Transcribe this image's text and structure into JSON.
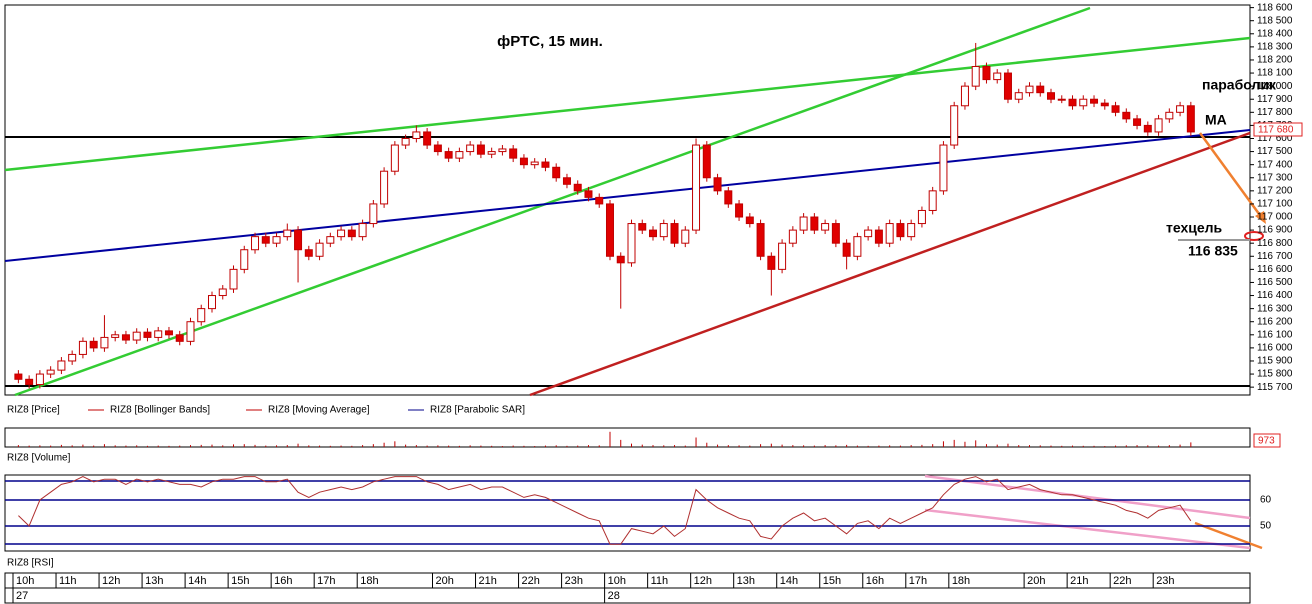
{
  "chart_data": [
    {
      "type": "candlestick",
      "title": "фРТС, 15 мин.",
      "ohlc": [
        [
          115800,
          115830,
          115730,
          115760
        ],
        [
          115760,
          115790,
          115690,
          115720
        ],
        [
          115720,
          115830,
          115690,
          115800
        ],
        [
          115800,
          115860,
          115770,
          115830
        ],
        [
          115830,
          115930,
          115800,
          115900
        ],
        [
          115900,
          115980,
          115870,
          115950
        ],
        [
          115950,
          116080,
          115920,
          116050
        ],
        [
          116050,
          116080,
          115970,
          116000
        ],
        [
          116000,
          116250,
          115970,
          116080
        ],
        [
          116080,
          116130,
          116050,
          116100
        ],
        [
          116100,
          116130,
          116030,
          116060
        ],
        [
          116060,
          116150,
          116030,
          116120
        ],
        [
          116120,
          116150,
          116050,
          116080
        ],
        [
          116080,
          116160,
          116050,
          116130
        ],
        [
          116130,
          116160,
          116070,
          116100
        ],
        [
          116100,
          116130,
          116020,
          116050
        ],
        [
          116050,
          116230,
          116020,
          116200
        ],
        [
          116200,
          116330,
          116170,
          116300
        ],
        [
          116300,
          116430,
          116270,
          116400
        ],
        [
          116400,
          116480,
          116370,
          116450
        ],
        [
          116450,
          116630,
          116420,
          116600
        ],
        [
          116600,
          116780,
          116570,
          116750
        ],
        [
          116750,
          116880,
          116720,
          116850
        ],
        [
          116850,
          116880,
          116770,
          116800
        ],
        [
          116800,
          116880,
          116770,
          116850
        ],
        [
          116850,
          116950,
          116820,
          116900
        ],
        [
          116900,
          116930,
          116500,
          116750
        ],
        [
          116750,
          116780,
          116670,
          116700
        ],
        [
          116700,
          116830,
          116670,
          116800
        ],
        [
          116800,
          116880,
          116770,
          116850
        ],
        [
          116850,
          116930,
          116820,
          116900
        ],
        [
          116900,
          116930,
          116820,
          116850
        ],
        [
          116850,
          116980,
          116820,
          116950
        ],
        [
          116950,
          117130,
          116920,
          117100
        ],
        [
          117100,
          117380,
          117070,
          117350
        ],
        [
          117350,
          117580,
          117320,
          117550
        ],
        [
          117550,
          117630,
          117520,
          117600
        ],
        [
          117600,
          117700,
          117570,
          117650
        ],
        [
          117650,
          117680,
          117520,
          117550
        ],
        [
          117550,
          117580,
          117470,
          117500
        ],
        [
          117500,
          117530,
          117420,
          117450
        ],
        [
          117450,
          117530,
          117420,
          117500
        ],
        [
          117500,
          117580,
          117470,
          117550
        ],
        [
          117550,
          117580,
          117450,
          117480
        ],
        [
          117480,
          117530,
          117450,
          117500
        ],
        [
          117500,
          117550,
          117470,
          117520
        ],
        [
          117520,
          117550,
          117420,
          117450
        ],
        [
          117450,
          117480,
          117370,
          117400
        ],
        [
          117400,
          117450,
          117370,
          117420
        ],
        [
          117420,
          117450,
          117350,
          117380
        ],
        [
          117380,
          117410,
          117270,
          117300
        ],
        [
          117300,
          117330,
          117220,
          117250
        ],
        [
          117250,
          117280,
          117170,
          117200
        ],
        [
          117200,
          117230,
          117120,
          117150
        ],
        [
          117150,
          117180,
          117070,
          117100
        ],
        [
          117100,
          117130,
          116670,
          116700
        ],
        [
          116700,
          116730,
          116300,
          116650
        ],
        [
          116650,
          116980,
          116620,
          116950
        ],
        [
          116950,
          116980,
          116870,
          116900
        ],
        [
          116900,
          116930,
          116820,
          116850
        ],
        [
          116850,
          116980,
          116820,
          116950
        ],
        [
          116950,
          116980,
          116770,
          116800
        ],
        [
          116800,
          116930,
          116770,
          116900
        ],
        [
          116900,
          117600,
          116870,
          117550
        ],
        [
          117550,
          117580,
          117270,
          117300
        ],
        [
          117300,
          117330,
          117170,
          117200
        ],
        [
          117200,
          117230,
          117070,
          117100
        ],
        [
          117100,
          117130,
          116970,
          117000
        ],
        [
          117000,
          117030,
          116920,
          116950
        ],
        [
          116950,
          116980,
          116670,
          116700
        ],
        [
          116700,
          116730,
          116400,
          116600
        ],
        [
          116600,
          116830,
          116570,
          116800
        ],
        [
          116800,
          116930,
          116770,
          116900
        ],
        [
          116900,
          117030,
          116870,
          117000
        ],
        [
          117000,
          117030,
          116870,
          116900
        ],
        [
          116900,
          116980,
          116870,
          116950
        ],
        [
          116950,
          116980,
          116770,
          116800
        ],
        [
          116800,
          116830,
          116600,
          116700
        ],
        [
          116700,
          116880,
          116670,
          116850
        ],
        [
          116850,
          116930,
          116820,
          116900
        ],
        [
          116900,
          116930,
          116770,
          116800
        ],
        [
          116800,
          116980,
          116770,
          116950
        ],
        [
          116950,
          116980,
          116820,
          116850
        ],
        [
          116850,
          116980,
          116820,
          116950
        ],
        [
          116950,
          117080,
          116920,
          117050
        ],
        [
          117050,
          117230,
          117020,
          117200
        ],
        [
          117200,
          117580,
          117170,
          117550
        ],
        [
          117550,
          117880,
          117520,
          117850
        ],
        [
          117850,
          118030,
          117820,
          118000
        ],
        [
          118000,
          118330,
          117970,
          118150
        ],
        [
          118150,
          118180,
          118020,
          118050
        ],
        [
          118050,
          118130,
          118020,
          118100
        ],
        [
          118100,
          118130,
          117870,
          117900
        ],
        [
          117900,
          117980,
          117870,
          117950
        ],
        [
          117950,
          118030,
          117920,
          118000
        ],
        [
          118000,
          118030,
          117920,
          117950
        ],
        [
          117950,
          117980,
          117870,
          117900
        ],
        [
          117900,
          117930,
          117870,
          117900
        ],
        [
          117900,
          117930,
          117820,
          117850
        ],
        [
          117850,
          117930,
          117820,
          117900
        ],
        [
          117900,
          117930,
          117840,
          117870
        ],
        [
          117870,
          117900,
          117820,
          117850
        ],
        [
          117850,
          117880,
          117770,
          117800
        ],
        [
          117800,
          117830,
          117720,
          117750
        ],
        [
          117750,
          117780,
          117670,
          117700
        ],
        [
          117700,
          117730,
          117620,
          117650
        ],
        [
          117650,
          117780,
          117620,
          117750
        ],
        [
          117750,
          117830,
          117720,
          117800
        ],
        [
          117800,
          117880,
          117770,
          117850
        ],
        [
          117850,
          117880,
          117620,
          117650
        ]
      ],
      "up_color": "#ffffff",
      "down_color": "#e00000",
      "edge_color": "#c00000",
      "ylim": [
        115640,
        118620
      ],
      "yticks": [
        {
          "value": 115700,
          "label": "115 700"
        },
        {
          "value": 115800,
          "label": "115 800"
        },
        {
          "value": 115900,
          "label": "115 900"
        },
        {
          "value": 116000,
          "label": "116 000"
        },
        {
          "value": 116100,
          "label": "116 100"
        },
        {
          "value": 116200,
          "label": "116 200"
        },
        {
          "value": 116300,
          "label": "116 300"
        },
        {
          "value": 116400,
          "label": "116 400"
        },
        {
          "value": 116500,
          "label": "116 500"
        },
        {
          "value": 116600,
          "label": "116 600"
        },
        {
          "value": 116700,
          "label": "116 700"
        },
        {
          "value": 116800,
          "label": "116 800"
        },
        {
          "value": 116900,
          "label": "116 900"
        },
        {
          "value": 117000,
          "label": "117 000"
        },
        {
          "value": 117100,
          "label": "117 100"
        },
        {
          "value": 117200,
          "label": "117 200"
        },
        {
          "value": 117300,
          "label": "117 300"
        },
        {
          "value": 117400,
          "label": "117 400"
        },
        {
          "value": 117500,
          "label": "117 500"
        },
        {
          "value": 117600,
          "label": "117 600"
        },
        {
          "value": 117700,
          "label": "117 700"
        },
        {
          "value": 117800,
          "label": "117 800"
        },
        {
          "value": 117900,
          "label": "117 900"
        },
        {
          "value": 118000,
          "label": "118 000"
        },
        {
          "value": 118100,
          "label": "118 100"
        },
        {
          "value": 118200,
          "label": "118 200"
        },
        {
          "value": 118300,
          "label": "118 300"
        },
        {
          "value": 118400,
          "label": "118 400"
        },
        {
          "value": 118500,
          "label": "118 500"
        },
        {
          "value": 118600,
          "label": "118 600"
        }
      ],
      "xlim": [
        0,
        115
      ],
      "xticks": [
        {
          "value": 0,
          "label": "10h"
        },
        {
          "value": 4,
          "label": "11h"
        },
        {
          "value": 8,
          "label": "12h"
        },
        {
          "value": 12,
          "label": "13h"
        },
        {
          "value": 16,
          "label": "14h"
        },
        {
          "value": 20,
          "label": "15h"
        },
        {
          "value": 24,
          "label": "16h"
        },
        {
          "value": 28,
          "label": "17h"
        },
        {
          "value": 32,
          "label": "18h"
        },
        {
          "value": 39,
          "label": "20h"
        },
        {
          "value": 43,
          "label": "21h"
        },
        {
          "value": 47,
          "label": "22h"
        },
        {
          "value": 51,
          "label": "23h"
        },
        {
          "value": 55,
          "label": "10h"
        },
        {
          "value": 59,
          "label": "11h"
        },
        {
          "value": 63,
          "label": "12h"
        },
        {
          "value": 67,
          "label": "13h"
        },
        {
          "value": 71,
          "label": "14h"
        },
        {
          "value": 75,
          "label": "15h"
        },
        {
          "value": 79,
          "label": "16h"
        },
        {
          "value": 83,
          "label": "17h"
        },
        {
          "value": 87,
          "label": "18h"
        },
        {
          "value": 94,
          "label": "20h"
        },
        {
          "value": 98,
          "label": "21h"
        },
        {
          "value": 102,
          "label": "22h"
        },
        {
          "value": 106,
          "label": "23h"
        }
      ],
      "dates": [
        {
          "value": 0,
          "label": "27"
        },
        {
          "value": 55,
          "label": "28"
        }
      ],
      "legend": [
        "RIZ8 [Price]",
        "RIZ8 [Bollinger Bands]",
        "RIZ8 [Moving Average]",
        "RIZ8 [Parabolic SAR]"
      ],
      "legend_colors": [
        "#c00000",
        "#c00000",
        "#c00000",
        "#00008b"
      ],
      "annotations": [
        "параболик",
        "MA",
        "техцель",
        "116 835",
        "117 680"
      ]
    },
    {
      "type": "bar",
      "label": "RIZ8 [Volume]",
      "color": "#c00000",
      "ylim": [
        0,
        4000
      ],
      "values": [
        400,
        300,
        350,
        300,
        450,
        350,
        500,
        300,
        600,
        350,
        300,
        350,
        250,
        300,
        250,
        300,
        400,
        450,
        500,
        350,
        550,
        600,
        450,
        300,
        350,
        400,
        700,
        350,
        300,
        250,
        300,
        250,
        400,
        600,
        900,
        1200,
        500,
        400,
        300,
        350,
        300,
        250,
        350,
        300,
        250,
        200,
        300,
        250,
        200,
        300,
        350,
        250,
        300,
        400,
        350,
        3200,
        1500,
        700,
        500,
        400,
        350,
        400,
        300,
        2000,
        900,
        500,
        400,
        350,
        300,
        600,
        700,
        500,
        400,
        350,
        300,
        400,
        350,
        450,
        300,
        250,
        300,
        350,
        300,
        400,
        450,
        600,
        1200,
        1500,
        1100,
        1400,
        600,
        500,
        700,
        400,
        400,
        350,
        300,
        250,
        300,
        250,
        250,
        200,
        300,
        350,
        400,
        350,
        300,
        400,
        500,
        973
      ]
    },
    {
      "type": "line",
      "label": "RIZ8 [RSI]",
      "color": "#b03030",
      "grid_color": "#00008b",
      "ylim": [
        40.4,
        69.6
      ],
      "yticks": [
        50,
        60
      ],
      "values": [
        54,
        50,
        60,
        63,
        66,
        67,
        69,
        67,
        68,
        68,
        66,
        68,
        67,
        68,
        67,
        66,
        66,
        65,
        67,
        68,
        68,
        69,
        69,
        67,
        67,
        68,
        63,
        61,
        63,
        64,
        65,
        64,
        65,
        67,
        68,
        69,
        69,
        69,
        67,
        66,
        64,
        65,
        66,
        64,
        65,
        65,
        63,
        61,
        62,
        61,
        59,
        57,
        55,
        53,
        52,
        43,
        43,
        49,
        48,
        47,
        50,
        46,
        49,
        64,
        60,
        57,
        55,
        53,
        52,
        46,
        45,
        50,
        53,
        55,
        52,
        53,
        50,
        47,
        51,
        52,
        49,
        53,
        51,
        53,
        55,
        57,
        62,
        66,
        68,
        69,
        67,
        68,
        64,
        65,
        66,
        64,
        63,
        62,
        62,
        61,
        60,
        59,
        58,
        56,
        55,
        53,
        56,
        57,
        58,
        52
      ]
    }
  ]
}
